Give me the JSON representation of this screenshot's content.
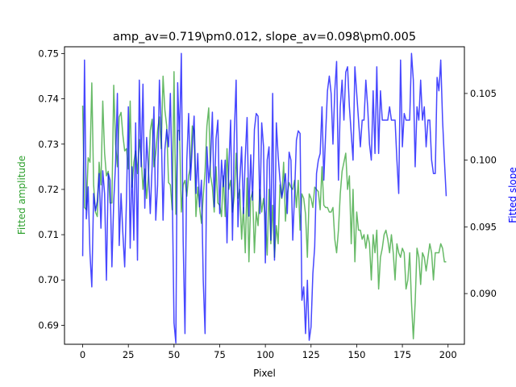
{
  "chart_data": {
    "type": "line",
    "title": "amp_av=0.719\\pm0.012, slope_av=0.098\\pm0.005",
    "xlabel": "Pixel",
    "ylabel_left": "Fitted amplitude",
    "ylabel_right": "Fitted slope",
    "xlim": [
      -9.95,
      208.95
    ],
    "ylim_left": [
      0.6858,
      0.7515
    ],
    "ylim_right": [
      0.0862,
      0.1085
    ],
    "x_ticks": [
      0,
      25,
      50,
      75,
      100,
      125,
      150,
      175,
      200
    ],
    "y_ticks_left": [
      0.69,
      0.7,
      0.71,
      0.72,
      0.73,
      0.74,
      0.75
    ],
    "y_ticks_right": [
      0.09,
      0.095,
      0.1,
      0.105
    ],
    "grid": false,
    "legend": "none",
    "x": [
      0,
      1,
      2,
      3,
      4,
      5,
      6,
      7,
      8,
      9,
      10,
      11,
      12,
      13,
      14,
      15,
      16,
      17,
      18,
      19,
      20,
      21,
      22,
      23,
      24,
      25,
      26,
      27,
      28,
      29,
      30,
      31,
      32,
      33,
      34,
      35,
      36,
      37,
      38,
      39,
      40,
      41,
      42,
      43,
      44,
      45,
      46,
      47,
      48,
      49,
      50,
      51,
      52,
      53,
      54,
      55,
      56,
      57,
      58,
      59,
      60,
      61,
      62,
      63,
      64,
      65,
      66,
      67,
      68,
      69,
      70,
      71,
      72,
      73,
      74,
      75,
      76,
      77,
      78,
      79,
      80,
      81,
      82,
      83,
      84,
      85,
      86,
      87,
      88,
      89,
      90,
      91,
      92,
      93,
      94,
      95,
      96,
      97,
      98,
      99,
      100,
      101,
      102,
      103,
      104,
      105,
      106,
      107,
      108,
      109,
      110,
      111,
      112,
      113,
      114,
      115,
      116,
      117,
      118,
      119,
      120,
      121,
      122,
      123,
      124,
      125,
      126,
      127,
      128,
      129,
      130,
      131,
      132,
      133,
      134,
      135,
      136,
      137,
      138,
      139,
      140,
      141,
      142,
      143,
      144,
      145,
      146,
      147,
      148,
      149,
      150,
      151,
      152,
      153,
      154,
      155,
      156,
      157,
      158,
      159,
      160,
      161,
      162,
      163,
      164,
      165,
      166,
      167,
      168,
      169,
      170,
      171,
      172,
      173,
      174,
      175,
      176,
      177,
      178,
      179,
      180,
      181,
      182,
      183,
      184,
      185,
      186,
      187,
      188,
      189,
      190,
      191,
      192,
      193,
      194,
      195,
      196,
      197,
      198,
      199
    ],
    "series": [
      {
        "name": "",
        "axis": "left",
        "color": "#2ca02c",
        "values": [
          0.7385,
          0.716,
          0.7155,
          0.727,
          0.726,
          0.7435,
          0.721,
          0.715,
          0.714,
          0.726,
          0.721,
          0.7395,
          0.728,
          0.723,
          0.724,
          0.717,
          0.717,
          0.743,
          0.73,
          0.725,
          0.736,
          0.737,
          0.732,
          0.7285,
          0.729,
          0.7245,
          0.7395,
          0.7205,
          0.726,
          0.7285,
          0.7235,
          0.731,
          0.7275,
          0.72,
          0.7245,
          0.718,
          0.723,
          0.733,
          0.7355,
          0.725,
          0.728,
          0.733,
          0.736,
          0.729,
          0.745,
          0.7375,
          0.734,
          0.7215,
          0.721,
          0.7155,
          0.746,
          0.7145,
          0.733,
          0.733,
          0.715,
          0.721,
          0.722,
          0.7185,
          0.723,
          0.725,
          0.734,
          0.733,
          0.714,
          0.7205,
          0.716,
          0.7125,
          0.7185,
          0.724,
          0.734,
          0.738,
          0.723,
          0.7205,
          0.715,
          0.725,
          0.717,
          0.7165,
          0.714,
          0.723,
          0.714,
          0.729,
          0.72,
          0.722,
          0.715,
          0.7185,
          0.728,
          0.718,
          0.72,
          0.709,
          0.716,
          0.706,
          0.7225,
          0.704,
          0.718,
          0.7195,
          0.706,
          0.715,
          0.712,
          0.72,
          0.715,
          0.718,
          0.714,
          0.7055,
          0.72,
          0.708,
          0.7165,
          0.705,
          0.712,
          0.708,
          0.721,
          0.718,
          0.726,
          0.713,
          0.719,
          0.7215,
          0.7205,
          0.72,
          0.722,
          0.716,
          0.722,
          0.711,
          0.719,
          0.718,
          0.7145,
          0.705,
          0.719,
          0.718,
          0.716,
          0.7205,
          0.72,
          0.7195,
          0.7155,
          0.725,
          0.7165,
          0.716,
          0.716,
          0.715,
          0.715,
          0.716,
          0.709,
          0.706,
          0.711,
          0.719,
          0.724,
          0.726,
          0.728,
          0.72,
          0.723,
          0.708,
          0.72,
          0.704,
          0.715,
          0.711,
          0.711,
          0.709,
          0.71,
          0.707,
          0.71,
          0.708,
          0.7,
          0.71,
          0.706,
          0.711,
          0.698,
          0.705,
          0.707,
          0.71,
          0.711,
          0.709,
          0.706,
          0.71,
          0.706,
          0.7,
          0.708,
          0.706,
          0.705,
          0.707,
          0.706,
          0.698,
          0.7,
          0.706,
          0.695,
          0.687,
          0.695,
          0.707,
          0.705,
          0.699,
          0.706,
          0.705,
          0.702,
          0.705,
          0.708,
          0.706,
          0.7,
          0.706,
          0.706,
          0.706,
          0.708,
          0.707,
          0.704,
          0.704
        ]
      },
      {
        "name": "",
        "axis": "right",
        "color": "#0000ff",
        "values": [
          0.0928,
          0.1075,
          0.0956,
          0.098,
          0.093,
          0.0905,
          0.0975,
          0.0962,
          0.0969,
          0.099,
          0.0949,
          0.0992,
          0.0975,
          0.091,
          0.099,
          0.0985,
          0.092,
          0.0969,
          0.0997,
          0.105,
          0.0936,
          0.0975,
          0.0945,
          0.092,
          0.0972,
          0.104,
          0.0934,
          0.0995,
          0.094,
          0.1028,
          0.0925,
          0.106,
          0.0995,
          0.1057,
          0.0964,
          0.1017,
          0.0993,
          0.096,
          0.0995,
          0.104,
          0.0955,
          0.0981,
          0.106,
          0.1024,
          0.0955,
          0.1008,
          0.1023,
          0.101,
          0.105,
          0.098,
          0.0878,
          0.0863,
          0.1058,
          0.1015,
          0.108,
          0.094,
          0.087,
          0.1,
          0.1035,
          0.0985,
          0.101,
          0.1033,
          0.0975,
          0.1005,
          0.0965,
          0.0985,
          0.091,
          0.087,
          0.101,
          0.0983,
          0.1,
          0.1036,
          0.0965,
          0.1016,
          0.103,
          0.096,
          0.1,
          0.098,
          0.1,
          0.0938,
          0.0995,
          0.103,
          0.094,
          0.102,
          0.106,
          0.095,
          0.0985,
          0.101,
          0.096,
          0.1002,
          0.1032,
          0.0958,
          0.1004,
          0.097,
          0.1023,
          0.1035,
          0.1033,
          0.096,
          0.1028,
          0.101,
          0.0923,
          0.1,
          0.101,
          0.094,
          0.105,
          0.0925,
          0.1028,
          0.1003,
          0.0985,
          0.0972,
          0.098,
          0.099,
          0.096,
          0.1006,
          0.1,
          0.094,
          0.0975,
          0.1015,
          0.1022,
          0.102,
          0.0895,
          0.0905,
          0.087,
          0.091,
          0.0865,
          0.0875,
          0.0915,
          0.0935,
          0.099,
          0.1,
          0.1005,
          0.104,
          0.0985,
          0.102,
          0.1052,
          0.1063,
          0.105,
          0.1012,
          0.1052,
          0.1074,
          0.0985,
          0.104,
          0.106,
          0.103,
          0.1066,
          0.107,
          0.104,
          0.102,
          0.1,
          0.107,
          0.105,
          0.103,
          0.101,
          0.103,
          0.103,
          0.106,
          0.104,
          0.1012,
          0.1,
          0.1052,
          0.1005,
          0.107,
          0.1005,
          0.1052,
          0.103,
          0.103,
          0.103,
          0.103,
          0.104,
          0.103,
          0.103,
          0.103,
          0.1,
          0.0975,
          0.1075,
          0.101,
          0.1035,
          0.103,
          0.103,
          0.103,
          0.108,
          0.106,
          0.0995,
          0.104,
          0.103,
          0.106,
          0.103,
          0.104,
          0.101,
          0.103,
          0.103,
          0.1,
          0.099,
          0.099,
          0.1062,
          0.1052,
          0.1075,
          0.103,
          0.1,
          0.0973
        ]
      }
    ]
  }
}
